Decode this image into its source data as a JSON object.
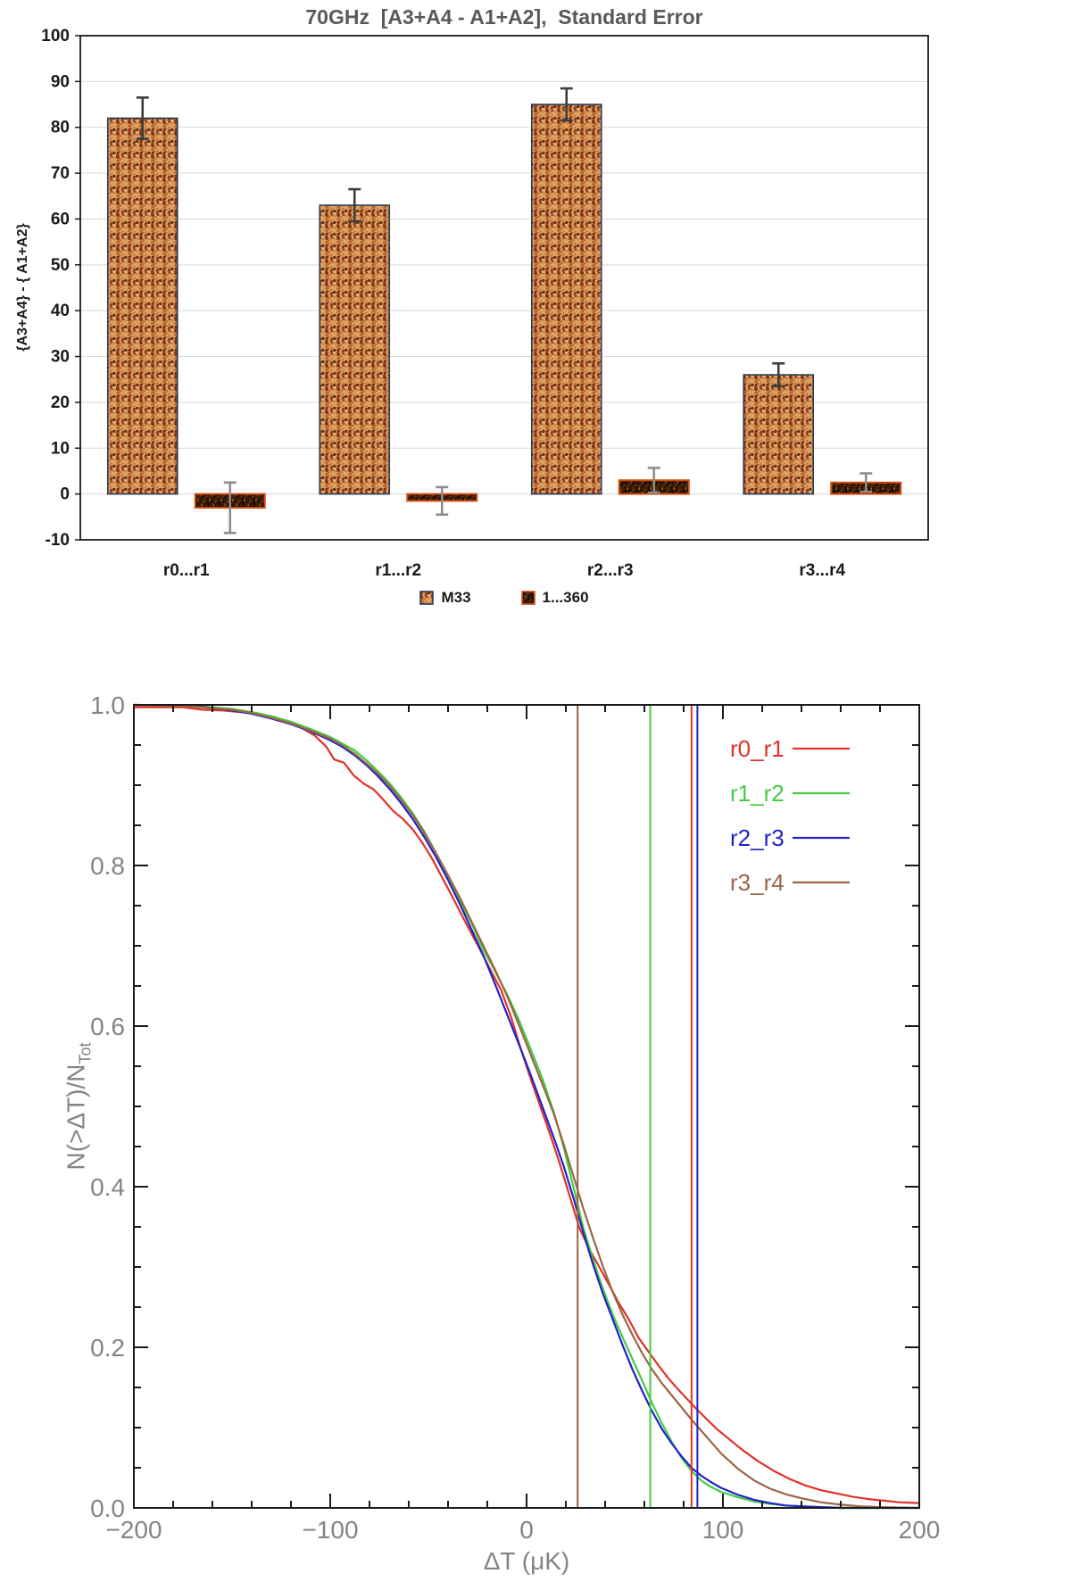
{
  "chart_data": [
    {
      "type": "bar",
      "title": "70GHz  [A3+A4 - A1+A2],  Standard Error",
      "ylabel": "{A3+A4} - { A1+A2}",
      "categories": [
        "r0...r1",
        "r1...r2",
        "r2...r3",
        "r3...r4"
      ],
      "ylim": [
        -10,
        100
      ],
      "ytick_step": 10,
      "grid": true,
      "grid_color": "#d9d9d9",
      "title_color": "#595959",
      "axis_text_color": "#1a1a1a",
      "legend_position": "bottom-center",
      "series": [
        {
          "name": "M33",
          "values": [
            82,
            63,
            85,
            26
          ],
          "errors": [
            4.5,
            3.5,
            3.5,
            2.5
          ],
          "fill_base": "#dfa05e",
          "speckles": [
            "#b5622e",
            "#8c3d1c",
            "#f2c38c",
            "#7a2a12",
            "#5a2a10",
            "#c9763a"
          ],
          "stroke": "#2b3a55",
          "error_color": "#3d3d3d"
        },
        {
          "name": "1...360",
          "values": [
            -3,
            -1.5,
            3,
            2.5
          ],
          "errors": [
            5.5,
            3,
            2.7,
            2
          ],
          "fill_base": "#1a0d03",
          "speckles": [
            "#53280f",
            "#7a3c12",
            "#3a1d08",
            "#b35418"
          ],
          "stroke": "#d44d12",
          "error_color": "#8c8c8c"
        }
      ]
    },
    {
      "type": "line",
      "xlabel": "ΔT (μK)",
      "ylabel": "N(>ΔT)/N_Tot",
      "ylabel_main": "N(>ΔT)/N",
      "ylabel_sub": "Tot",
      "xlim": [
        -200,
        200
      ],
      "ylim": [
        0,
        1.0
      ],
      "xticks": [
        -200,
        -100,
        0,
        100,
        200
      ],
      "yticks": [
        0.0,
        0.2,
        0.4,
        0.6,
        0.8,
        1.0
      ],
      "xtick_minor": 20,
      "ytick_minor": 0.05,
      "grid": false,
      "legend_position": "top-right-inside",
      "text_color": "#848484",
      "frame_color": "#1a1a1a",
      "vlines": [
        {
          "label": "r3_r4",
          "x": 26
        },
        {
          "label": "r1_r2",
          "x": 63
        },
        {
          "label": "r0_r1",
          "x": 84
        },
        {
          "label": "r2_r3",
          "x": 87
        }
      ],
      "series": [
        {
          "label": "r0_r1",
          "color": "#e23228",
          "points": [
            [
              -200,
              0.997
            ],
            [
              -175,
              0.997
            ],
            [
              -165,
              0.994
            ],
            [
              -155,
              0.993
            ],
            [
              -145,
              0.991
            ],
            [
              -135,
              0.988
            ],
            [
              -125,
              0.982
            ],
            [
              -115,
              0.972
            ],
            [
              -108,
              0.962
            ],
            [
              -102,
              0.948
            ],
            [
              -98,
              0.932
            ],
            [
              -93,
              0.928
            ],
            [
              -88,
              0.912
            ],
            [
              -83,
              0.902
            ],
            [
              -78,
              0.895
            ],
            [
              -73,
              0.882
            ],
            [
              -68,
              0.868
            ],
            [
              -63,
              0.858
            ],
            [
              -58,
              0.845
            ],
            [
              -53,
              0.828
            ],
            [
              -48,
              0.808
            ],
            [
              -43,
              0.785
            ],
            [
              -38,
              0.762
            ],
            [
              -33,
              0.738
            ],
            [
              -28,
              0.715
            ],
            [
              -23,
              0.692
            ],
            [
              -18,
              0.668
            ],
            [
              -13,
              0.645
            ],
            [
              -8,
              0.612
            ],
            [
              -3,
              0.572
            ],
            [
              2,
              0.535
            ],
            [
              7,
              0.5
            ],
            [
              12,
              0.465
            ],
            [
              17,
              0.428
            ],
            [
              22,
              0.388
            ],
            [
              27,
              0.348
            ],
            [
              32,
              0.322
            ],
            [
              37,
              0.3
            ],
            [
              42,
              0.278
            ],
            [
              47,
              0.255
            ],
            [
              52,
              0.235
            ],
            [
              57,
              0.212
            ],
            [
              62,
              0.195
            ],
            [
              67,
              0.178
            ],
            [
              72,
              0.162
            ],
            [
              77,
              0.148
            ],
            [
              82,
              0.135
            ],
            [
              87,
              0.122
            ],
            [
              92,
              0.11
            ],
            [
              97,
              0.098
            ],
            [
              102,
              0.088
            ],
            [
              110,
              0.072
            ],
            [
              118,
              0.058
            ],
            [
              126,
              0.046
            ],
            [
              134,
              0.036
            ],
            [
              142,
              0.028
            ],
            [
              150,
              0.022
            ],
            [
              158,
              0.018
            ],
            [
              166,
              0.014
            ],
            [
              174,
              0.011
            ],
            [
              182,
              0.009
            ],
            [
              190,
              0.007
            ],
            [
              200,
              0.006
            ]
          ]
        },
        {
          "label": "r1_r2",
          "color": "#44cc44",
          "points": [
            [
              -200,
              1.0
            ],
            [
              -170,
              0.999
            ],
            [
              -160,
              0.997
            ],
            [
              -150,
              0.995
            ],
            [
              -140,
              0.991
            ],
            [
              -130,
              0.986
            ],
            [
              -120,
              0.979
            ],
            [
              -110,
              0.97
            ],
            [
              -100,
              0.96
            ],
            [
              -94,
              0.952
            ],
            [
              -88,
              0.944
            ],
            [
              -82,
              0.932
            ],
            [
              -76,
              0.918
            ],
            [
              -70,
              0.903
            ],
            [
              -64,
              0.885
            ],
            [
              -58,
              0.865
            ],
            [
              -52,
              0.842
            ],
            [
              -46,
              0.815
            ],
            [
              -40,
              0.785
            ],
            [
              -34,
              0.755
            ],
            [
              -28,
              0.728
            ],
            [
              -22,
              0.695
            ],
            [
              -16,
              0.668
            ],
            [
              -10,
              0.64
            ],
            [
              -4,
              0.608
            ],
            [
              2,
              0.572
            ],
            [
              8,
              0.535
            ],
            [
              14,
              0.492
            ],
            [
              19,
              0.448
            ],
            [
              24,
              0.398
            ],
            [
              29,
              0.348
            ],
            [
              34,
              0.308
            ],
            [
              39,
              0.272
            ],
            [
              44,
              0.24
            ],
            [
              49,
              0.212
            ],
            [
              54,
              0.185
            ],
            [
              59,
              0.158
            ],
            [
              64,
              0.13
            ],
            [
              69,
              0.105
            ],
            [
              74,
              0.082
            ],
            [
              79,
              0.062
            ],
            [
              84,
              0.046
            ],
            [
              89,
              0.034
            ],
            [
              94,
              0.026
            ],
            [
              99,
              0.02
            ],
            [
              108,
              0.013
            ],
            [
              116,
              0.008
            ],
            [
              124,
              0.005
            ],
            [
              132,
              0.003
            ],
            [
              140,
              0.002
            ],
            [
              150,
              0.001
            ],
            [
              160,
              0.0
            ],
            [
              200,
              0.0
            ]
          ]
        },
        {
          "label": "r2_r3",
          "color": "#2222cc",
          "points": [
            [
              -200,
              1.0
            ],
            [
              -170,
              0.999
            ],
            [
              -160,
              0.996
            ],
            [
              -150,
              0.993
            ],
            [
              -140,
              0.989
            ],
            [
              -130,
              0.983
            ],
            [
              -120,
              0.976
            ],
            [
              -110,
              0.967
            ],
            [
              -100,
              0.956
            ],
            [
              -94,
              0.948
            ],
            [
              -88,
              0.938
            ],
            [
              -82,
              0.926
            ],
            [
              -76,
              0.912
            ],
            [
              -70,
              0.896
            ],
            [
              -64,
              0.878
            ],
            [
              -58,
              0.858
            ],
            [
              -52,
              0.835
            ],
            [
              -46,
              0.81
            ],
            [
              -40,
              0.782
            ],
            [
              -34,
              0.752
            ],
            [
              -28,
              0.72
            ],
            [
              -22,
              0.688
            ],
            [
              -16,
              0.652
            ],
            [
              -10,
              0.615
            ],
            [
              -4,
              0.578
            ],
            [
              2,
              0.54
            ],
            [
              8,
              0.5
            ],
            [
              14,
              0.46
            ],
            [
              19,
              0.425
            ],
            [
              24,
              0.385
            ],
            [
              29,
              0.342
            ],
            [
              34,
              0.302
            ],
            [
              39,
              0.266
            ],
            [
              44,
              0.234
            ],
            [
              49,
              0.202
            ],
            [
              54,
              0.172
            ],
            [
              59,
              0.145
            ],
            [
              64,
              0.12
            ],
            [
              69,
              0.098
            ],
            [
              74,
              0.08
            ],
            [
              79,
              0.064
            ],
            [
              84,
              0.05
            ],
            [
              89,
              0.04
            ],
            [
              94,
              0.032
            ],
            [
              99,
              0.025
            ],
            [
              108,
              0.016
            ],
            [
              116,
              0.01
            ],
            [
              124,
              0.006
            ],
            [
              132,
              0.003
            ],
            [
              140,
              0.002
            ],
            [
              150,
              0.001
            ],
            [
              160,
              0.0
            ],
            [
              200,
              0.0
            ]
          ]
        },
        {
          "label": "r3_r4",
          "color": "#9c6644",
          "points": [
            [
              -200,
              1.0
            ],
            [
              -170,
              0.998
            ],
            [
              -160,
              0.996
            ],
            [
              -150,
              0.994
            ],
            [
              -140,
              0.99
            ],
            [
              -130,
              0.984
            ],
            [
              -120,
              0.977
            ],
            [
              -110,
              0.968
            ],
            [
              -100,
              0.958
            ],
            [
              -94,
              0.95
            ],
            [
              -88,
              0.94
            ],
            [
              -82,
              0.928
            ],
            [
              -76,
              0.915
            ],
            [
              -70,
              0.9
            ],
            [
              -64,
              0.882
            ],
            [
              -58,
              0.863
            ],
            [
              -52,
              0.84
            ],
            [
              -46,
              0.815
            ],
            [
              -40,
              0.788
            ],
            [
              -34,
              0.76
            ],
            [
              -28,
              0.73
            ],
            [
              -22,
              0.7
            ],
            [
              -16,
              0.67
            ],
            [
              -10,
              0.638
            ],
            [
              -4,
              0.602
            ],
            [
              2,
              0.565
            ],
            [
              8,
              0.528
            ],
            [
              14,
              0.49
            ],
            [
              19,
              0.452
            ],
            [
              24,
              0.412
            ],
            [
              29,
              0.372
            ],
            [
              34,
              0.335
            ],
            [
              39,
              0.3
            ],
            [
              44,
              0.268
            ],
            [
              49,
              0.24
            ],
            [
              54,
              0.215
            ],
            [
              59,
              0.192
            ],
            [
              64,
              0.172
            ],
            [
              69,
              0.155
            ],
            [
              74,
              0.14
            ],
            [
              79,
              0.125
            ],
            [
              84,
              0.11
            ],
            [
              89,
              0.096
            ],
            [
              94,
              0.082
            ],
            [
              99,
              0.068
            ],
            [
              108,
              0.048
            ],
            [
              116,
              0.034
            ],
            [
              124,
              0.024
            ],
            [
              132,
              0.017
            ],
            [
              140,
              0.012
            ],
            [
              150,
              0.007
            ],
            [
              160,
              0.004
            ],
            [
              170,
              0.002
            ],
            [
              180,
              0.001
            ],
            [
              200,
              0.0
            ]
          ]
        }
      ]
    }
  ]
}
